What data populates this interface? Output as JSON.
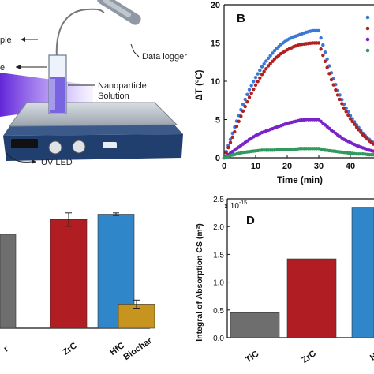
{
  "panel_a": {
    "labels": {
      "sample": "ple",
      "probe": "e",
      "light": "e",
      "data_logger": "Data logger",
      "nanoparticle": "Nanoparticle",
      "solution": "Solution",
      "uv_led": "UV LED"
    }
  },
  "panel_b": {
    "letter": "B",
    "chart_data": {
      "type": "scatter",
      "xlabel": "Time (min)",
      "ylabel": "ΔT (°C)",
      "xlim": [
        0,
        50
      ],
      "ylim": [
        0,
        20
      ],
      "x_ticks": [
        "0",
        "10",
        "20",
        "30",
        "40",
        "5"
      ],
      "y_ticks": [
        "0",
        "5",
        "10",
        "15",
        "20"
      ],
      "series": [
        {
          "color": "#3a78d8",
          "x": [
            0,
            2,
            4,
            6,
            8,
            10,
            12,
            14,
            16,
            18,
            20,
            22,
            24,
            26,
            28,
            30,
            32,
            34,
            36,
            38,
            40,
            42,
            44,
            46,
            48,
            50
          ],
          "y": [
            0,
            2.4,
            4.8,
            7.0,
            8.9,
            10.5,
            11.9,
            13.0,
            14.0,
            14.8,
            15.4,
            15.8,
            16.1,
            16.4,
            16.6,
            16.6,
            13.8,
            11.1,
            8.8,
            7.0,
            5.5,
            4.3,
            3.2,
            2.4,
            1.8,
            1.3
          ]
        },
        {
          "color": "#b02020",
          "x": [
            0,
            2,
            4,
            6,
            8,
            10,
            12,
            14,
            16,
            18,
            20,
            22,
            24,
            26,
            28,
            30,
            32,
            34,
            36,
            38,
            40,
            42,
            44,
            46,
            48,
            50
          ],
          "y": [
            0,
            2.0,
            4.1,
            6.1,
            7.9,
            9.5,
            10.9,
            12.0,
            12.9,
            13.6,
            14.1,
            14.5,
            14.8,
            14.9,
            15.0,
            15.0,
            12.6,
            10.2,
            8.2,
            6.5,
            5.1,
            4.0,
            3.0,
            2.2,
            1.6,
            1.1
          ]
        },
        {
          "color": "#7a22c9",
          "x": [
            0,
            2,
            4,
            6,
            8,
            10,
            12,
            14,
            16,
            18,
            20,
            22,
            24,
            26,
            28,
            30,
            32,
            34,
            36,
            38,
            40,
            42,
            44,
            46,
            48,
            50
          ],
          "y": [
            0,
            0.6,
            1.2,
            1.8,
            2.4,
            2.9,
            3.3,
            3.6,
            3.9,
            4.2,
            4.5,
            4.7,
            4.9,
            5.0,
            5.0,
            5.0,
            4.3,
            3.6,
            3.0,
            2.4,
            2.0,
            1.6,
            1.3,
            1.0,
            0.8,
            0.6
          ]
        },
        {
          "color": "#2e9a5c",
          "x": [
            0,
            2,
            4,
            6,
            8,
            10,
            12,
            14,
            16,
            18,
            20,
            22,
            24,
            26,
            28,
            30,
            32,
            34,
            36,
            38,
            40,
            42,
            44,
            46,
            48,
            50
          ],
          "y": [
            0,
            0.3,
            0.5,
            0.7,
            0.8,
            0.9,
            1.0,
            1.0,
            1.0,
            1.1,
            1.1,
            1.1,
            1.2,
            1.2,
            1.2,
            1.2,
            1.0,
            0.9,
            0.8,
            0.7,
            0.6,
            0.5,
            0.5,
            0.4,
            0.4,
            0.3
          ]
        }
      ]
    }
  },
  "panel_c": {
    "chart_data": {
      "type": "bar",
      "categories": [
        "r",
        "ZrC",
        "HfC",
        "Biochar"
      ],
      "values": [
        0.7,
        0.81,
        0.85,
        0.18
      ],
      "errors": [
        0,
        0.05,
        0.01,
        0.03
      ],
      "colors": [
        "#6e6e6e",
        "#b01e24",
        "#2f86c9",
        "#c7941f"
      ],
      "ylim": [
        0,
        1
      ]
    }
  },
  "panel_d": {
    "letter": "D",
    "chart_data": {
      "type": "bar",
      "categories": [
        "TiC",
        "ZrC",
        "H"
      ],
      "values": [
        0.45,
        1.42,
        2.35
      ],
      "colors": [
        "#6e6e6e",
        "#b01e24",
        "#2f86c9"
      ],
      "ylabel": "Integral of Absorption CS (m²)",
      "y_multiplier": "x 10",
      "y_exponent": "-15",
      "ylim": [
        0,
        2.5
      ],
      "y_ticks": [
        "0.0",
        "0.5",
        "1.0",
        "1.5",
        "2.0",
        "2.5"
      ]
    }
  }
}
